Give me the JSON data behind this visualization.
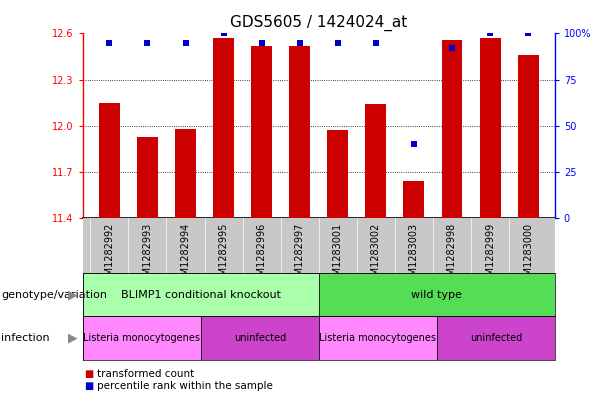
{
  "title": "GDS5605 / 1424024_at",
  "samples": [
    "GSM1282992",
    "GSM1282993",
    "GSM1282994",
    "GSM1282995",
    "GSM1282996",
    "GSM1282997",
    "GSM1283001",
    "GSM1283002",
    "GSM1283003",
    "GSM1282998",
    "GSM1282999",
    "GSM1283000"
  ],
  "transformed_counts": [
    12.15,
    11.93,
    11.98,
    12.57,
    12.52,
    12.52,
    11.97,
    12.14,
    11.64,
    12.56,
    12.57,
    12.46
  ],
  "percentile_ranks": [
    95,
    95,
    95,
    100,
    95,
    95,
    95,
    95,
    40,
    92,
    100,
    100
  ],
  "bar_base": 11.4,
  "ylim_left": [
    11.4,
    12.6
  ],
  "ylim_right": [
    0,
    100
  ],
  "yticks_left": [
    11.4,
    11.7,
    12.0,
    12.3,
    12.6
  ],
  "yticks_right": [
    0,
    25,
    50,
    75,
    100
  ],
  "bar_color": "#cc0000",
  "dot_color": "#0000cc",
  "background_color": "#ffffff",
  "tick_bg_color": "#c8c8c8",
  "genotype_groups": [
    {
      "label": "BLIMP1 conditional knockout",
      "start": 0,
      "end": 6,
      "color": "#aaffaa"
    },
    {
      "label": "wild type",
      "start": 6,
      "end": 12,
      "color": "#55dd55"
    }
  ],
  "infection_groups": [
    {
      "label": "Listeria monocytogenes",
      "start": 0,
      "end": 3,
      "color": "#ff88ff"
    },
    {
      "label": "uninfected",
      "start": 3,
      "end": 6,
      "color": "#cc44cc"
    },
    {
      "label": "Listeria monocytogenes",
      "start": 6,
      "end": 9,
      "color": "#ff88ff"
    },
    {
      "label": "uninfected",
      "start": 9,
      "end": 12,
      "color": "#cc44cc"
    }
  ],
  "legend_items": [
    {
      "label": "transformed count",
      "color": "#cc0000"
    },
    {
      "label": "percentile rank within the sample",
      "color": "#0000cc"
    }
  ],
  "genotype_label": "genotype/variation",
  "infection_label": "infection",
  "title_fontsize": 11,
  "tick_fontsize": 7,
  "annotation_fontsize": 8,
  "inf_fontsize": 7,
  "legend_fontsize": 7.5,
  "row_label_fontsize": 8
}
